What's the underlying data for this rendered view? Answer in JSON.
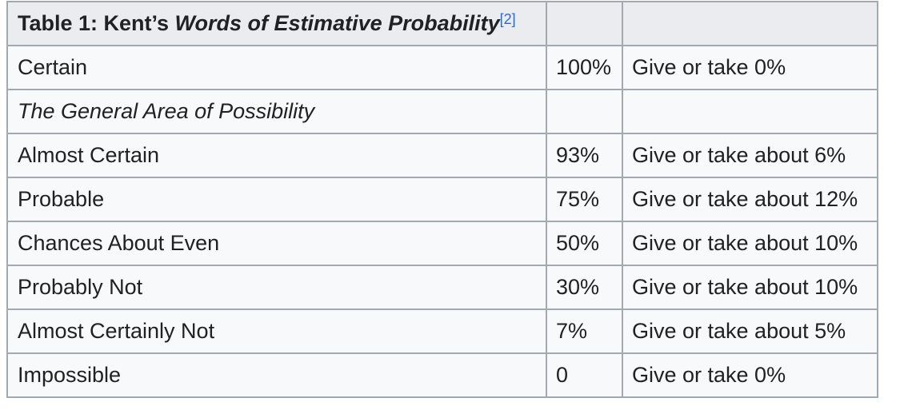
{
  "table": {
    "caption_prefix": "Table 1: Kent’s ",
    "caption_title": "Words of Estimative Probability",
    "caption_cite": "[2]",
    "header_col2": "",
    "header_col3": "",
    "rows": [
      {
        "term": "Certain",
        "pct": "100%",
        "range": "Give or take 0%"
      },
      {
        "term": "The General Area of Possibility",
        "pct": "",
        "range": "",
        "section": true
      },
      {
        "term": "Almost Certain",
        "pct": "93%",
        "range": "Give or take about 6%"
      },
      {
        "term": "Probable",
        "pct": "75%",
        "range": "Give or take about 12%"
      },
      {
        "term": "Chances About Even",
        "pct": "50%",
        "range": "Give or take about 10%"
      },
      {
        "term": "Probably Not",
        "pct": "30%",
        "range": "Give or take about 10%"
      },
      {
        "term": "Almost Certainly Not",
        "pct": "7%",
        "range": "Give or take about 5%"
      },
      {
        "term": "Impossible",
        "pct": "0",
        "range": "Give or take 0%"
      }
    ]
  },
  "colors": {
    "border": "#a2a9b1",
    "header_bg": "#eaecf0",
    "cell_bg": "#f8f9fa",
    "text": "#202122",
    "link": "#3366cc"
  }
}
